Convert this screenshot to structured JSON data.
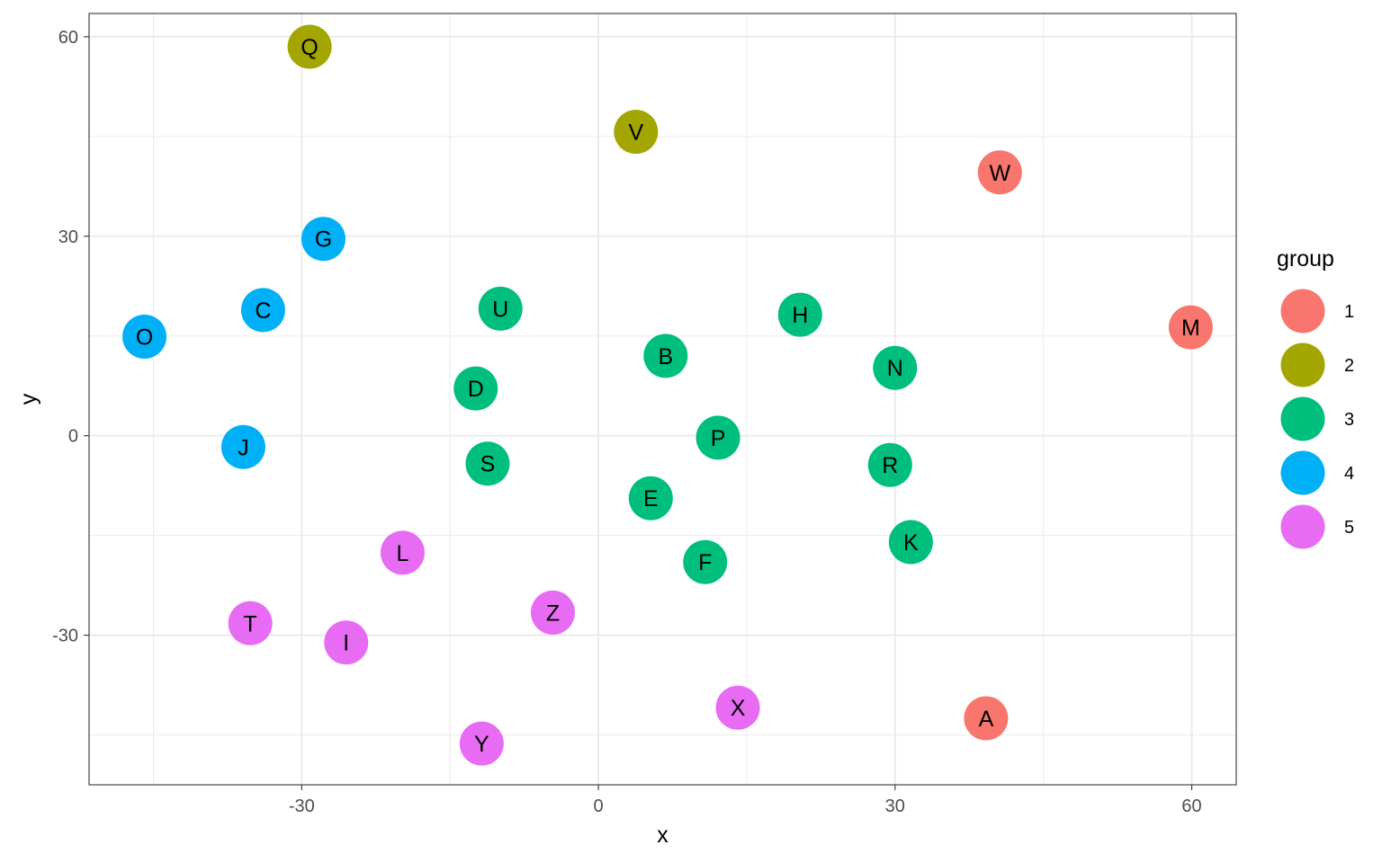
{
  "chart_data": {
    "type": "scatter",
    "xlabel": "x",
    "ylabel": "y",
    "xlim": [
      -51.5,
      64.5
    ],
    "ylim": [
      -52.5,
      63.5
    ],
    "x_ticks": [
      -30,
      0,
      30,
      60
    ],
    "y_ticks": [
      -30,
      0,
      30,
      60
    ],
    "x_tick_labels": [
      "-30",
      "0",
      "30",
      "60"
    ],
    "y_tick_labels": [
      "-30",
      "0",
      "30",
      "60"
    ],
    "x_minor": [
      -45,
      -15,
      15,
      45
    ],
    "y_minor": [
      -45,
      -15,
      15,
      45
    ],
    "grid": true,
    "legend": {
      "title": "group",
      "position": "right",
      "entries": [
        {
          "label": "1",
          "color": "#F8766D"
        },
        {
          "label": "2",
          "color": "#A3A500"
        },
        {
          "label": "3",
          "color": "#00BF7D"
        },
        {
          "label": "4",
          "color": "#00B0F6"
        },
        {
          "label": "5",
          "color": "#E76BF3"
        }
      ]
    },
    "points": [
      {
        "label": "A",
        "x": 39.2,
        "y": -42.5,
        "group": "1"
      },
      {
        "label": "B",
        "x": 6.8,
        "y": 12.0,
        "group": "3"
      },
      {
        "label": "C",
        "x": -33.9,
        "y": 18.9,
        "group": "4"
      },
      {
        "label": "D",
        "x": -12.4,
        "y": 7.1,
        "group": "3"
      },
      {
        "label": "E",
        "x": 5.3,
        "y": -9.4,
        "group": "3"
      },
      {
        "label": "F",
        "x": 10.8,
        "y": -19.0,
        "group": "3"
      },
      {
        "label": "G",
        "x": -27.8,
        "y": 29.6,
        "group": "4"
      },
      {
        "label": "H",
        "x": 20.4,
        "y": 18.2,
        "group": "3"
      },
      {
        "label": "I",
        "x": -25.5,
        "y": -31.1,
        "group": "5"
      },
      {
        "label": "J",
        "x": -35.9,
        "y": -1.7,
        "group": "4"
      },
      {
        "label": "K",
        "x": 31.6,
        "y": -16.0,
        "group": "3"
      },
      {
        "label": "L",
        "x": -19.8,
        "y": -17.6,
        "group": "5"
      },
      {
        "label": "M",
        "x": 59.9,
        "y": 16.3,
        "group": "1"
      },
      {
        "label": "N",
        "x": 30.0,
        "y": 10.2,
        "group": "3"
      },
      {
        "label": "O",
        "x": -45.9,
        "y": 14.9,
        "group": "4"
      },
      {
        "label": "P",
        "x": 12.1,
        "y": -0.3,
        "group": "3"
      },
      {
        "label": "Q",
        "x": -29.2,
        "y": 58.5,
        "group": "2"
      },
      {
        "label": "R",
        "x": 29.5,
        "y": -4.4,
        "group": "3"
      },
      {
        "label": "S",
        "x": -11.2,
        "y": -4.2,
        "group": "3"
      },
      {
        "label": "T",
        "x": -35.2,
        "y": -28.2,
        "group": "5"
      },
      {
        "label": "U",
        "x": -9.9,
        "y": 19.1,
        "group": "3"
      },
      {
        "label": "V",
        "x": 3.8,
        "y": 45.7,
        "group": "2"
      },
      {
        "label": "W",
        "x": 40.6,
        "y": 39.6,
        "group": "1"
      },
      {
        "label": "X",
        "x": 14.1,
        "y": -40.9,
        "group": "5"
      },
      {
        "label": "Y",
        "x": -11.8,
        "y": -46.3,
        "group": "5"
      },
      {
        "label": "Z",
        "x": -4.6,
        "y": -26.6,
        "group": "5"
      }
    ]
  }
}
